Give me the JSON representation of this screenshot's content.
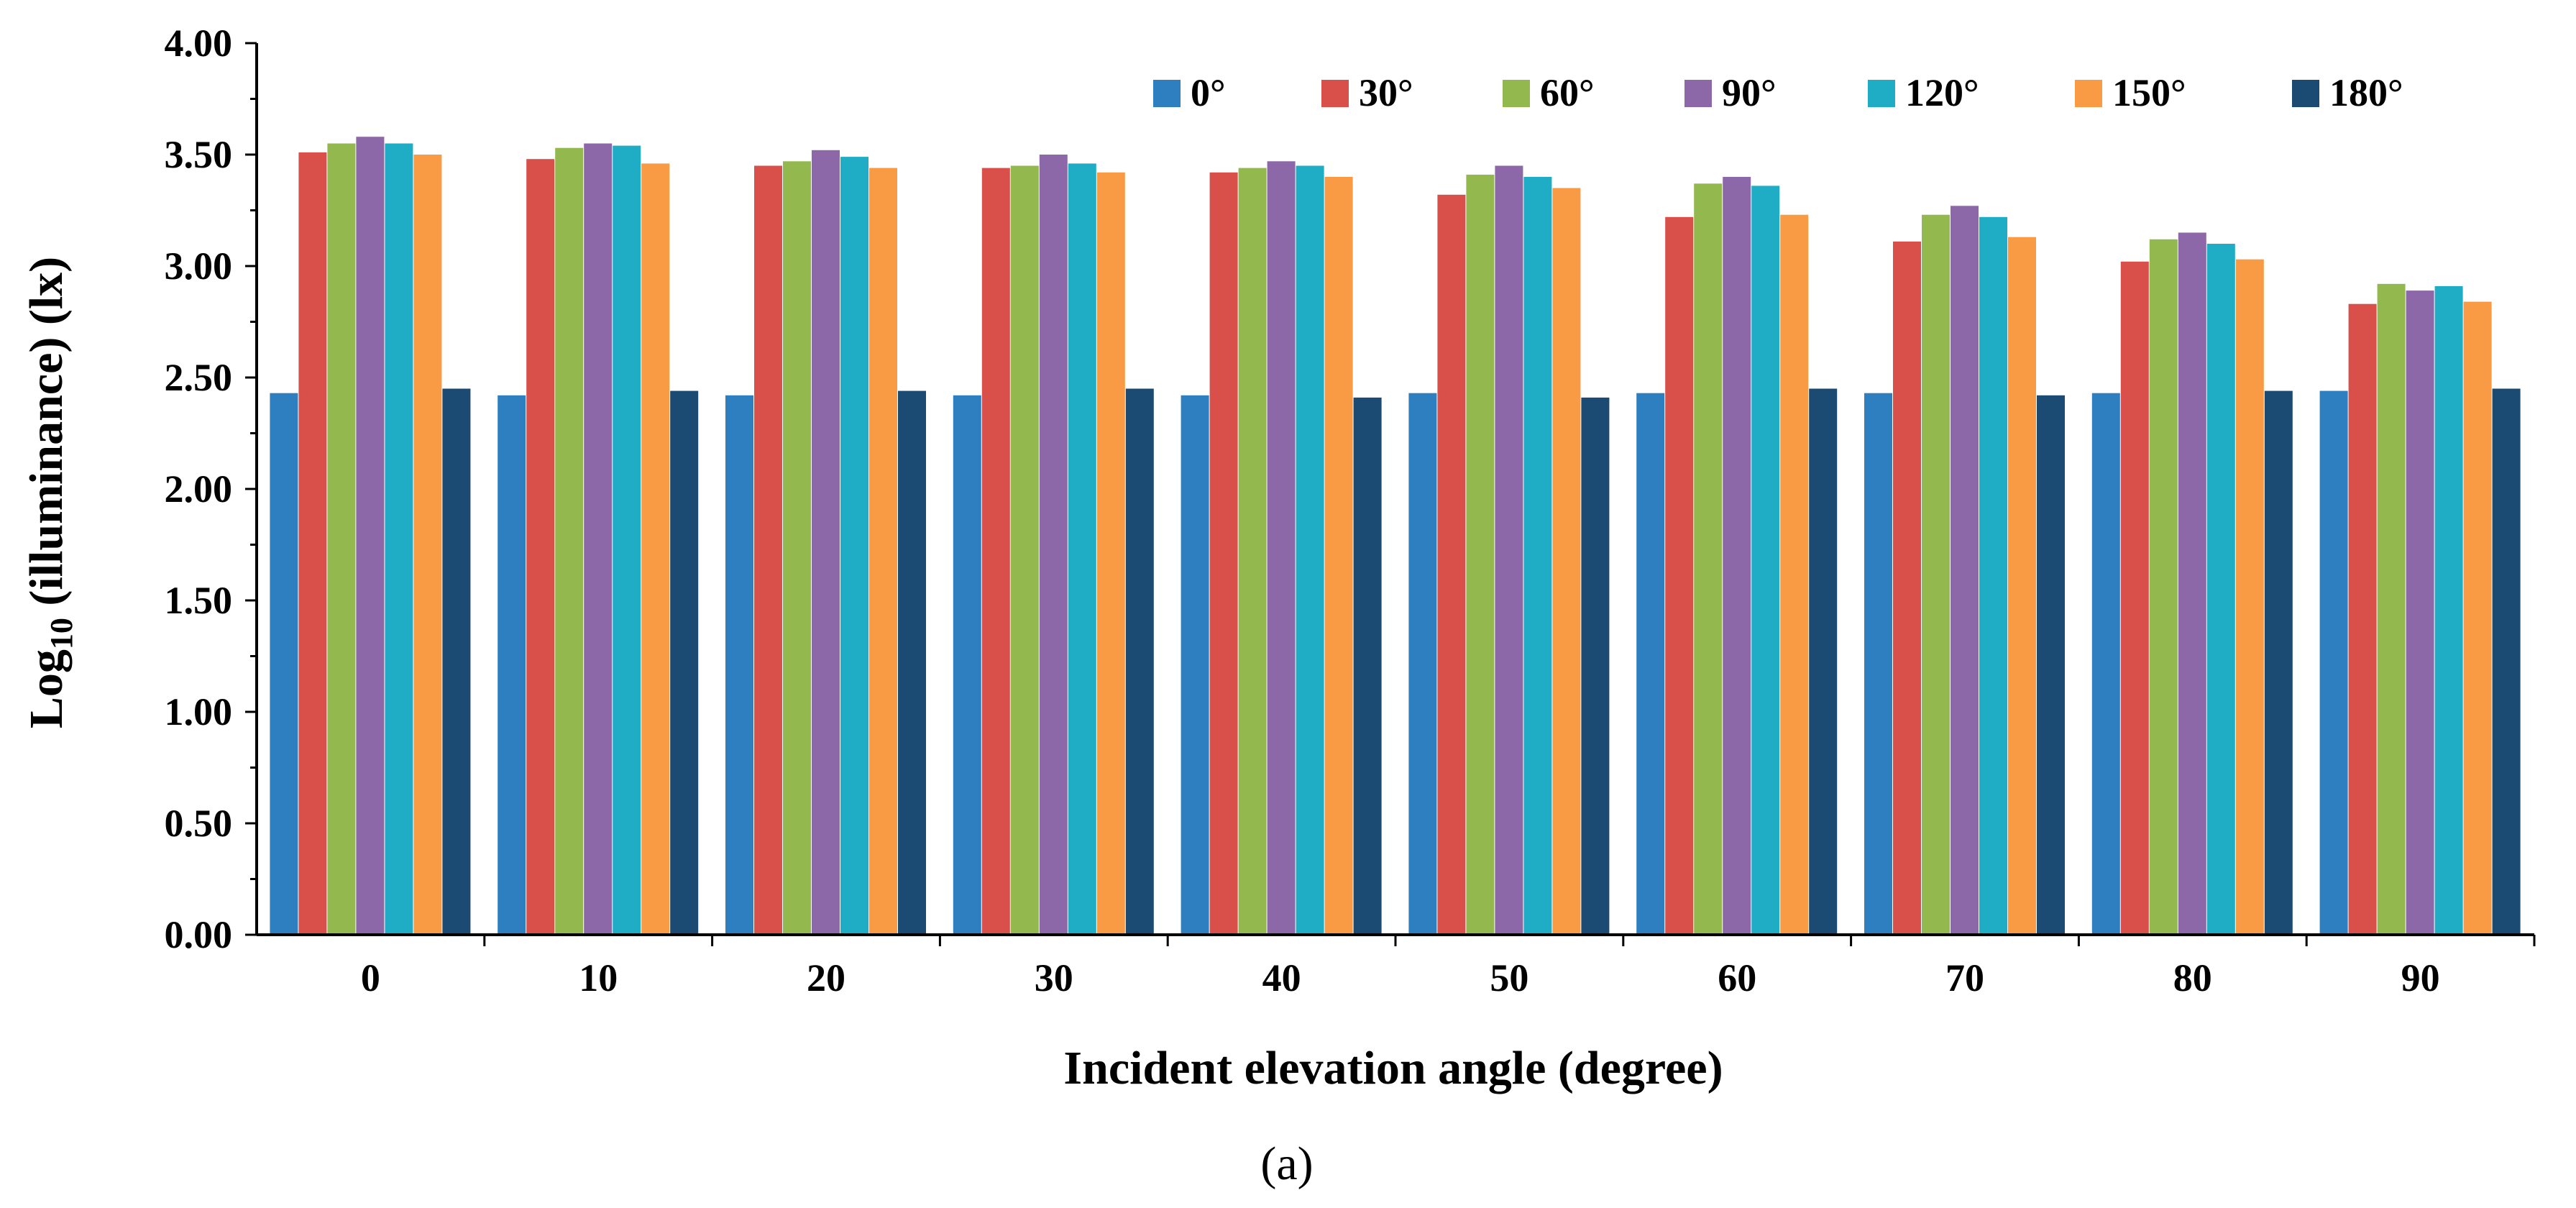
{
  "chart_data": {
    "type": "bar",
    "title": "",
    "xlabel": "Incident elevation angle (degree)",
    "ylabel": {
      "prefix": "Log",
      "subscript": "10",
      "suffix": " (illuminance) (lx)"
    },
    "caption": "(a)",
    "ylim": [
      0,
      4
    ],
    "yticks": [
      "0.00",
      "0.50",
      "1.00",
      "1.50",
      "2.00",
      "2.50",
      "3.00",
      "3.50",
      "4.00"
    ],
    "categories": [
      "0",
      "10",
      "20",
      "30",
      "40",
      "50",
      "60",
      "70",
      "80",
      "90"
    ],
    "legend_position": "top-right",
    "series": [
      {
        "name": "0°",
        "color": "#2e7fc0",
        "values": [
          2.43,
          2.42,
          2.42,
          2.42,
          2.42,
          2.43,
          2.43,
          2.43,
          2.43,
          2.44
        ]
      },
      {
        "name": "30°",
        "color": "#d9504b",
        "values": [
          3.51,
          3.48,
          3.45,
          3.44,
          3.42,
          3.32,
          3.22,
          3.11,
          3.02,
          2.83
        ]
      },
      {
        "name": "60°",
        "color": "#93b84e",
        "values": [
          3.55,
          3.53,
          3.47,
          3.45,
          3.44,
          3.41,
          3.37,
          3.23,
          3.12,
          2.92
        ]
      },
      {
        "name": "90°",
        "color": "#8d68a8",
        "values": [
          3.58,
          3.55,
          3.52,
          3.5,
          3.47,
          3.45,
          3.4,
          3.27,
          3.15,
          2.89
        ]
      },
      {
        "name": "120°",
        "color": "#1fadc6",
        "values": [
          3.55,
          3.54,
          3.49,
          3.46,
          3.45,
          3.4,
          3.36,
          3.22,
          3.1,
          2.91
        ]
      },
      {
        "name": "150°",
        "color": "#f99a44",
        "values": [
          3.5,
          3.46,
          3.44,
          3.42,
          3.4,
          3.35,
          3.23,
          3.13,
          3.03,
          2.84
        ]
      },
      {
        "name": "180°",
        "color": "#1b4b72",
        "values": [
          2.45,
          2.44,
          2.44,
          2.45,
          2.41,
          2.41,
          2.45,
          2.42,
          2.44,
          2.45
        ]
      }
    ]
  }
}
